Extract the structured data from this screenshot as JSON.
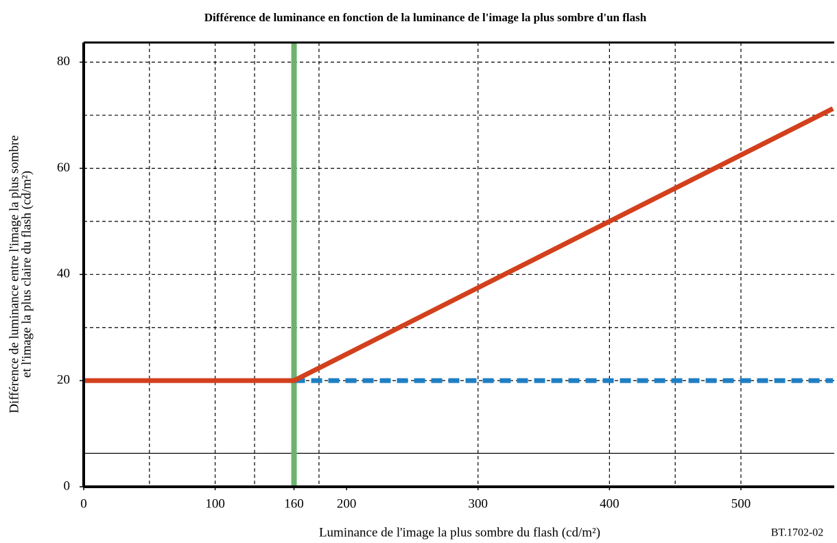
{
  "chart_data": {
    "type": "line",
    "title": "Différence de luminance en fonction de la luminance de l'image la plus sombre d'un flash",
    "xlabel": "Luminance de l'image la plus sombre du flash  (cd/m²)",
    "ylabel": [
      "Différence de luminance entre l'image la plus sombre",
      "et l'image la plus claire du flash (cd/m²)"
    ],
    "note": "BT.1702-02",
    "xlim": [
      0,
      571
    ],
    "ylim": [
      0,
      83.7
    ],
    "xticks": [
      0,
      100,
      160,
      200,
      300,
      400,
      500
    ],
    "yticks": [
      0,
      20,
      40,
      60,
      80
    ],
    "x_grid": [
      50,
      100,
      130,
      179,
      300,
      400,
      450,
      500
    ],
    "y_grid": [
      80,
      70,
      60,
      50,
      40,
      30,
      20,
      6.3
    ],
    "vlines": [
      {
        "x": 160,
        "color": "#6db36d"
      }
    ],
    "series": [
      {
        "color": "#1f7fc4",
        "dashed": true,
        "x": [
          160,
          570
        ],
        "values": [
          20,
          20
        ]
      },
      {
        "color": "#d2401c",
        "dashed": false,
        "x": [
          0,
          160,
          570
        ],
        "values": [
          20,
          20,
          71.25
        ]
      }
    ]
  }
}
